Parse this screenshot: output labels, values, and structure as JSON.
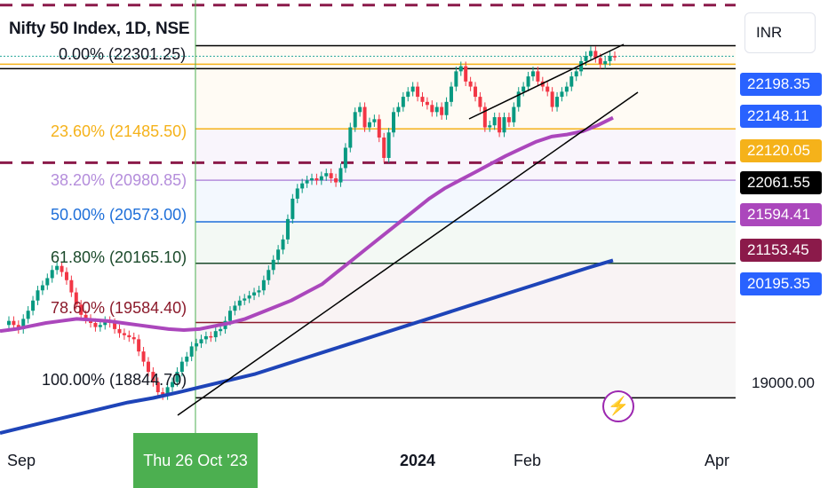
{
  "header": {
    "title": "Nifty 50 Index, 1D, NSE",
    "currency": "INR"
  },
  "colors": {
    "up": "#089981",
    "down": "#f23645",
    "ema_short": "#ab47bc",
    "ema_long": "#1e44b8",
    "fib_0": "#000000",
    "fib_236": "#f5b21a",
    "fib_382": "#b48ddb",
    "fib_50": "#1e6fd9",
    "fib_618": "#1b4a2b",
    "fib_786": "#8b1a2b",
    "fib_100": "#000000",
    "dashed": "#8b1a4a"
  },
  "price_labels": [
    {
      "value": "22198.35",
      "bg": "#2962ff"
    },
    {
      "value": "22148.11",
      "bg": "#2962ff"
    },
    {
      "value": "22120.05",
      "bg": "#f5b21a"
    },
    {
      "value": "22061.55",
      "bg": "#000000"
    },
    {
      "value": "21594.41",
      "bg": "#ab47bc"
    },
    {
      "value": "21153.45",
      "bg": "#8b1a4a"
    },
    {
      "value": "20195.35",
      "bg": "#2962ff"
    }
  ],
  "y_tick": "19000.00",
  "x_ticks": [
    {
      "label": "Sep",
      "bold": false
    },
    {
      "label": "2024",
      "bold": true
    },
    {
      "label": "Feb",
      "bold": false
    },
    {
      "label": "Apr",
      "bold": false
    }
  ],
  "x_highlight": "Thu 26 Oct '23",
  "chart_data": {
    "type": "candlestick",
    "title": "Nifty 50 Index, 1D, NSE",
    "ylim": [
      18500,
      22750
    ],
    "fibonacci": [
      {
        "label": "0.00% (22301.25)",
        "level": 0.0,
        "price": 22301.25
      },
      {
        "label": "23.60% (21485.50)",
        "level": 0.236,
        "price": 21485.5
      },
      {
        "label": "38.20% (20980.85)",
        "level": 0.382,
        "price": 20980.85
      },
      {
        "label": "50.00% (20573.00)",
        "level": 0.5,
        "price": 20573.0
      },
      {
        "label": "61.80% (20165.10)",
        "level": 0.618,
        "price": 20165.1
      },
      {
        "label": "78.60% (19584.40)",
        "level": 0.786,
        "price": 19584.4
      },
      {
        "label": "100.00% (18844.70)",
        "level": 1.0,
        "price": 18844.7
      }
    ],
    "dashed_levels": [
      22700,
      21153.45
    ],
    "reference_lines": [
      22198.35,
      22148.11,
      22120.05
    ],
    "series": [
      {
        "name": "close",
        "values": [
          19600,
          19560,
          19520,
          19620,
          19700,
          19800,
          19900,
          19950,
          20020,
          20100,
          20140,
          20080,
          20000,
          19880,
          19760,
          19660,
          19620,
          19580,
          19540,
          19560,
          19600,
          19580,
          19520,
          19480,
          19460,
          19440,
          19420,
          19300,
          19200,
          19100,
          19000,
          18900,
          18870,
          18950,
          19000,
          19100,
          19200,
          19250,
          19350,
          19380,
          19420,
          19450,
          19440,
          19500,
          19520,
          19600,
          19700,
          19750,
          19800,
          19820,
          19850,
          19880,
          19900,
          20000,
          20100,
          20200,
          20300,
          20400,
          20600,
          20800,
          20900,
          20950,
          20980,
          21000,
          20980,
          21020,
          21050,
          21000,
          20960,
          21100,
          21300,
          21500,
          21650,
          21700,
          21500,
          21550,
          21580,
          21400,
          21200,
          21450,
          21650,
          21700,
          21800,
          21850,
          21900,
          21800,
          21750,
          21720,
          21650,
          21700,
          21620,
          21750,
          21900,
          22050,
          22100,
          21950,
          21900,
          21800,
          21700,
          21500,
          21520,
          21600,
          21450,
          21600,
          21550,
          21700,
          21850,
          21900,
          22000,
          22050,
          21950,
          21900,
          21850,
          21700,
          21800,
          21850,
          21900,
          22000,
          22050,
          22150,
          22200,
          22250,
          22180,
          22120,
          22150,
          22200,
          22198
        ]
      },
      {
        "name": "ema_short",
        "values": [
          19500,
          19520,
          19550,
          19580,
          19600,
          19620,
          19610,
          19600,
          19580,
          19560,
          19540,
          19520,
          19510,
          19520,
          19550,
          19580,
          19620,
          19680,
          19740,
          19800,
          19880,
          19960,
          20080,
          20200,
          20320,
          20440,
          20560,
          20680,
          20800,
          20900,
          20980,
          21060,
          21140,
          21220,
          21290,
          21360,
          21410,
          21430,
          21460,
          21520,
          21594
        ]
      },
      {
        "name": "ema_long",
        "values": [
          18500,
          18560,
          18620,
          18680,
          18740,
          18800,
          18844,
          18900,
          18960,
          19020,
          19080,
          19160,
          19240,
          19320,
          19400,
          19480,
          19560,
          19640,
          19720,
          19800,
          19880,
          19960,
          20040,
          20120,
          20195
        ]
      }
    ]
  }
}
